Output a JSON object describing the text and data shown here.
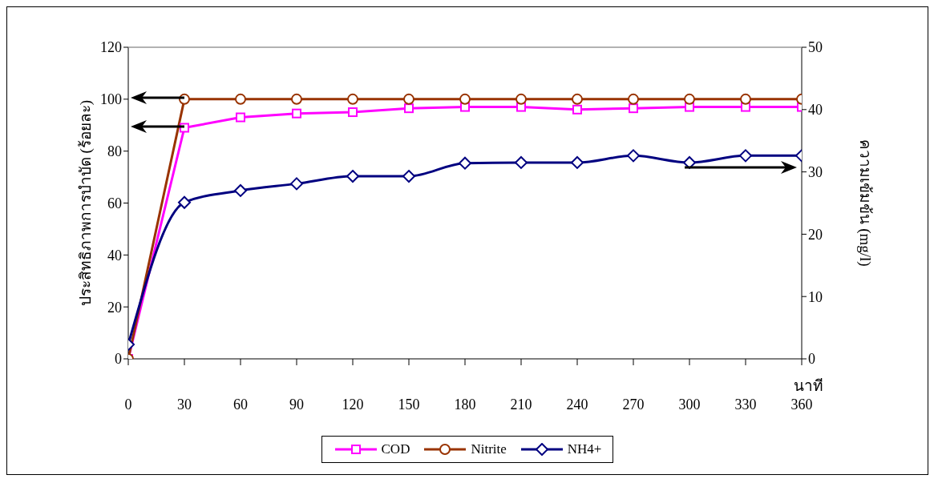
{
  "chart_data": {
    "type": "line",
    "x": [
      0,
      30,
      60,
      90,
      120,
      150,
      180,
      210,
      240,
      270,
      300,
      330,
      360
    ],
    "xlim": [
      0,
      360
    ],
    "xticks": [
      0,
      30,
      60,
      90,
      120,
      150,
      180,
      210,
      240,
      270,
      300,
      330,
      360
    ],
    "ylim": [
      0,
      120
    ],
    "yticks": [
      0,
      20,
      40,
      60,
      80,
      100,
      120
    ],
    "y2lim": [
      0,
      50
    ],
    "y2ticks": [
      0,
      10,
      20,
      30,
      40,
      50
    ],
    "xlabel": "นาที",
    "ylabel": "ประสิทธิภาพการบำบัด (ร้อยละ)",
    "y2label": "ความเข้มข้น (mg/l)",
    "series": [
      {
        "name": "COD",
        "color": "#ff00ff",
        "marker": "square",
        "values": [
          0,
          89,
          93,
          94.5,
          95,
          96.5,
          97,
          97,
          96,
          96.5,
          97,
          97,
          97
        ]
      },
      {
        "name": "Nitrite",
        "color": "#993300",
        "marker": "circle",
        "values": [
          0,
          100,
          100,
          100,
          100,
          100,
          100,
          100,
          100,
          100,
          100,
          100,
          100
        ]
      },
      {
        "name": "NH4+",
        "color": "#000080",
        "marker": "diamond",
        "axis": "y2",
        "values": [
          2.3,
          25.1,
          27,
          28.1,
          29.3,
          29.3,
          31.4,
          31.5,
          31.5,
          32.6,
          31.5,
          32.6,
          32.6
        ]
      }
    ],
    "grid": false,
    "legend": "bottom"
  }
}
